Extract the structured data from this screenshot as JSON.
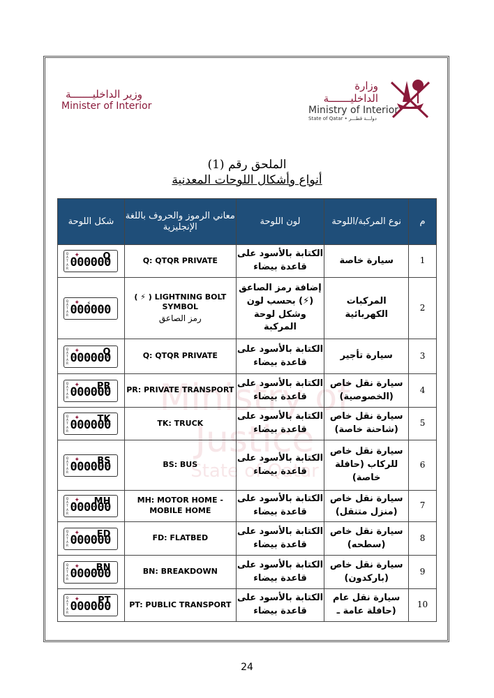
{
  "header": {
    "ministry_ar": "وزارة الداخليـــــــة",
    "ministry_en": "Ministry of Interior",
    "state": "State of Qatar • دولـــة قطـــر",
    "minister_ar": "وزير الداخليـــــــة",
    "minister_en": "Minister of Interior",
    "brand_color": "#8a1a3a"
  },
  "title": {
    "line1": "الملحق رقم (1)",
    "line2": "أنواع وأشكال اللوحات المعدنية"
  },
  "watermark": {
    "line1": "Ministry of Justice",
    "line2": "State of Qatar"
  },
  "table": {
    "header_color": "#1f4e79",
    "columns": [
      "م",
      "نوع المركبة/اللوحة",
      "لون اللوحة",
      "معاني الرموز والحروف باللغة الإنجليزية",
      "شكل اللوحة"
    ],
    "plate_prefix": "QATAR",
    "plate_number": "000000",
    "rows": [
      {
        "n": "1",
        "type": "سيارة خاصة",
        "color": "الكتابة بالأسود على قاعدة بيضاء",
        "meaning": "Q: QTQR PRIVATE",
        "code": "Q"
      },
      {
        "n": "2",
        "type": "المركبات الكهربائية",
        "color": "إضافة رمز الصاعق (⚡) بحسب لون وشكل لوحة المركبة",
        "meaning": "( ⚡ ) LIGHTNING BOLT SYMBOL",
        "meaning_ar": "رمز الصاعق",
        "code": "⚡"
      },
      {
        "n": "3",
        "type": "سيارة تأجير",
        "color": "الكتابة بالأسود على قاعدة بيضاء",
        "meaning": "Q: QTQR PRIVATE",
        "code": "Q"
      },
      {
        "n": "4",
        "type": "سيارة نقل خاص (الخصوصية)",
        "color": "الكتابة بالأسود على قاعدة بيضاء",
        "meaning": "PR: PRIVATE TRANSPORT",
        "code": "PR"
      },
      {
        "n": "5",
        "type": "سيارة نقل خاص (شاحنة خاصة)",
        "color": "الكتابة بالأسود على قاعدة بيضاء",
        "meaning": "TK: TRUCK",
        "code": "TK"
      },
      {
        "n": "6",
        "type": "سيارة نقل خاص للركاب (حافلة خاصة)",
        "color": "الكتابة بالأسود على قاعدة بيضاء",
        "meaning": "BS: BUS",
        "code": "BS"
      },
      {
        "n": "7",
        "type": "سيارة نقل خاص (منزل متنقل)",
        "color": "الكتابة بالأسود على قاعدة بيضاء",
        "meaning": "MH: MOTOR HOME - MOBILE HOME",
        "code": "MH"
      },
      {
        "n": "8",
        "type": "سيارة نقل خاص (سطحه)",
        "color": "الكتابة بالأسود على قاعدة بيضاء",
        "meaning": "FD: FLATBED",
        "code": "FD"
      },
      {
        "n": "9",
        "type": "سيارة نقل خاص (باركدون)",
        "color": "الكتابة بالأسود على قاعدة بيضاء",
        "meaning": "BN: BREAKDOWN",
        "code": "BN"
      },
      {
        "n": "10",
        "type": "سيارة نقل عام (حافلة عامة ـ",
        "color": "الكتابة بالأسود على قاعدة بيضاء",
        "meaning": "PT: PUBLIC TRANSPORT",
        "code": "PT"
      }
    ]
  },
  "page_number": "24"
}
